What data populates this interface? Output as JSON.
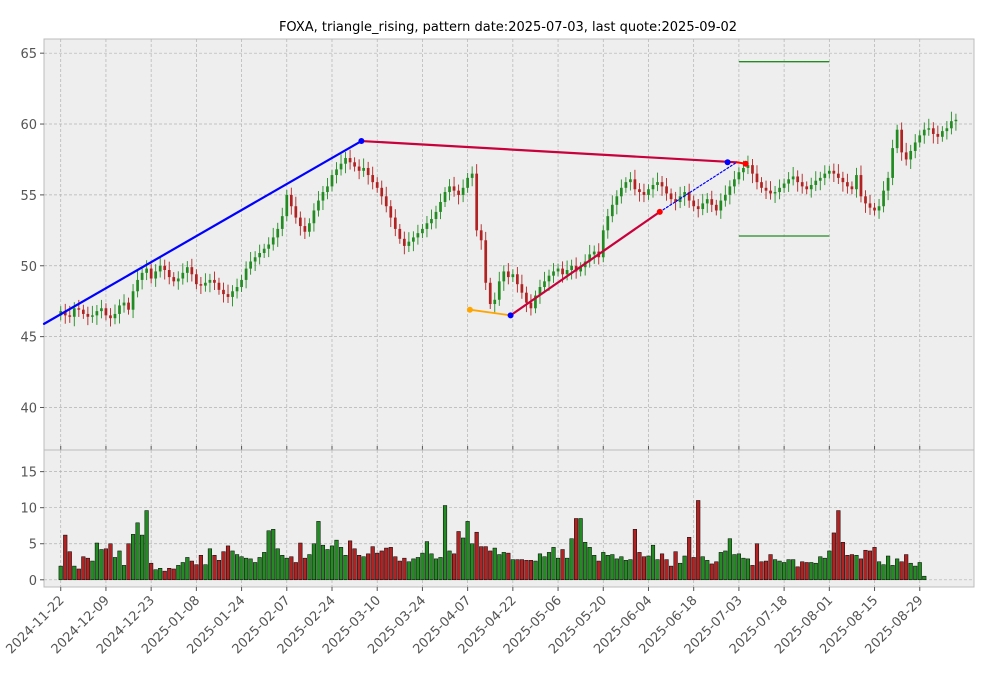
{
  "chart_data": {
    "type": "candlestick",
    "title": "FOXA, triangle_rising, pattern date:2025-07-03, last quote:2025-09-02",
    "price_panel": {
      "ylim": [
        37,
        66
      ],
      "yticks": [
        40,
        45,
        50,
        55,
        60,
        65
      ]
    },
    "volume_panel": {
      "ylim": [
        -1,
        18
      ],
      "yticks": [
        0,
        5,
        10,
        15
      ]
    },
    "xlim": [
      -3.7,
      202
    ],
    "x_tick_labels": [
      "2024-11-22",
      "2024-12-09",
      "2024-12-23",
      "2025-01-08",
      "2025-01-24",
      "2025-02-07",
      "2025-02-24",
      "2025-03-10",
      "2025-03-24",
      "2025-04-07",
      "2025-04-22",
      "2025-05-06",
      "2025-05-20",
      "2025-06-04",
      "2025-06-18",
      "2025-07-03",
      "2025-07-18",
      "2025-08-01",
      "2025-08-15",
      "2025-08-29"
    ],
    "x_tick_positions": [
      0,
      10,
      20,
      30,
      40,
      50,
      60,
      70,
      80,
      90,
      100,
      110,
      120,
      130,
      140,
      150,
      160,
      170,
      180,
      190
    ],
    "grid": true,
    "colors": {
      "up": "#228b22",
      "down": "#b22222",
      "upper_line_left": "#0000ff",
      "upper_line_right": "#c8003c",
      "marker_blue": "#0000ff",
      "marker_red": "#ff0000",
      "marker_orange": "#ffa500",
      "target": "#228b22",
      "dotted": "#0000ff"
    },
    "closes": [
      46.8,
      46.5,
      46.4,
      47.0,
      46.9,
      46.6,
      46.4,
      46.5,
      46.8,
      47.0,
      46.5,
      46.3,
      46.6,
      47.2,
      47.4,
      46.9,
      48.2,
      49.0,
      49.5,
      49.8,
      49.1,
      49.6,
      50.0,
      49.7,
      49.2,
      48.9,
      49.1,
      49.5,
      49.9,
      49.4,
      48.7,
      48.6,
      48.8,
      49.0,
      48.8,
      48.3,
      48.0,
      47.8,
      48.2,
      48.5,
      49.0,
      49.8,
      50.3,
      50.6,
      50.9,
      51.2,
      51.5,
      52.0,
      52.6,
      53.5,
      55.0,
      54.2,
      53.4,
      52.8,
      52.4,
      53.0,
      53.9,
      54.6,
      55.2,
      55.6,
      56.4,
      56.8,
      57.2,
      57.6,
      57.3,
      57.0,
      56.7,
      56.9,
      56.4,
      55.9,
      55.5,
      54.9,
      54.2,
      53.4,
      52.6,
      51.9,
      51.4,
      51.7,
      52.0,
      52.3,
      52.6,
      53.0,
      53.3,
      53.8,
      54.5,
      55.2,
      55.6,
      55.3,
      55.0,
      55.5,
      56.2,
      56.5,
      52.5,
      51.8,
      48.8,
      47.3,
      47.6,
      48.9,
      49.6,
      49.2,
      49.4,
      48.7,
      48.1,
      47.4,
      47.0,
      47.9,
      48.5,
      48.9,
      49.3,
      49.6,
      49.8,
      49.4,
      49.7,
      50.0,
      49.6,
      49.9,
      50.3,
      50.8,
      51.0,
      50.6,
      52.5,
      53.5,
      54.3,
      54.9,
      55.5,
      55.9,
      56.1,
      55.4,
      55.2,
      55.0,
      55.4,
      55.7,
      55.9,
      55.6,
      55.1,
      54.7,
      54.5,
      54.9,
      55.2,
      54.6,
      54.2,
      54.0,
      54.4,
      54.7,
      54.3,
      53.9,
      54.6,
      55.0,
      55.6,
      56.1,
      56.6,
      56.9,
      57.1,
      56.5,
      55.9,
      55.5,
      55.3,
      55.1,
      55.2,
      55.5,
      55.8,
      56.1,
      56.3,
      55.9,
      55.6,
      55.4,
      55.7,
      56.0,
      56.2,
      56.5,
      56.7,
      56.5,
      56.2,
      55.9,
      55.6,
      55.4,
      56.4,
      54.9,
      54.4,
      54.1,
      53.9,
      54.2,
      55.3,
      56.2,
      58.3,
      59.6,
      58.0,
      57.5,
      58.1,
      58.7,
      59.2,
      59.6,
      59.7,
      59.3,
      59.1,
      59.5,
      59.7,
      60.2,
      60.3
    ],
    "volumes": [
      1.9,
      6.2,
      3.9,
      1.9,
      1.5,
      3.2,
      3.0,
      2.6,
      5.1,
      4.2,
      4.3,
      5.0,
      3.1,
      4.0,
      2.0,
      5.0,
      6.3,
      7.9,
      6.2,
      9.6,
      2.3,
      1.4,
      1.6,
      1.2,
      1.6,
      1.5,
      2.0,
      2.4,
      3.1,
      2.6,
      2.1,
      3.4,
      2.1,
      4.3,
      3.4,
      2.7,
      3.9,
      4.7,
      4.0,
      3.5,
      3.2,
      3.0,
      2.9,
      2.4,
      3.1,
      3.8,
      6.8,
      7.0,
      4.3,
      3.4,
      3.0,
      3.2,
      2.4,
      5.1,
      3.0,
      3.5,
      5.0,
      8.1,
      4.8,
      4.2,
      4.7,
      5.5,
      4.5,
      3.4,
      5.4,
      4.3,
      3.4,
      3.2,
      3.6,
      4.6,
      3.7,
      4.0,
      4.4,
      4.5,
      3.2,
      2.6,
      3.0,
      2.5,
      2.9,
      3.1,
      3.7,
      5.3,
      3.6,
      2.9,
      3.1,
      10.3,
      4.0,
      3.6,
      6.7,
      5.8,
      8.1,
      5.0,
      6.6,
      4.6,
      4.6,
      4.0,
      4.4,
      3.5,
      3.8,
      3.7,
      2.8,
      2.8,
      2.8,
      2.7,
      2.7,
      2.6,
      3.6,
      3.2,
      3.8,
      4.5,
      3.0,
      4.2,
      3.0,
      5.7,
      8.5,
      8.5,
      5.2,
      4.5,
      3.4,
      2.6,
      3.8,
      3.4,
      3.5,
      2.9,
      3.2,
      2.7,
      2.8,
      7.0,
      3.8,
      3.2,
      3.3,
      4.8,
      2.8,
      3.6,
      2.8,
      1.9,
      3.9,
      2.3,
      3.3,
      5.9,
      3.1,
      11.0,
      3.2,
      2.7,
      2.2,
      2.5,
      3.8,
      4.0,
      5.7,
      3.5,
      3.6,
      3.0,
      2.9,
      2.0,
      5.0,
      2.5,
      2.6,
      3.5,
      2.8,
      2.6,
      2.4,
      2.8,
      2.8,
      1.8,
      2.5,
      2.4,
      2.4,
      2.3,
      3.2,
      3.0,
      4.0,
      6.5,
      9.6,
      5.2,
      3.4,
      3.5,
      3.4,
      2.9,
      4.1,
      4.0,
      4.5,
      2.5,
      2.1,
      3.3,
      2.0,
      2.9,
      2.5,
      3.5,
      2.3,
      1.9,
      2.4,
      0.5
    ],
    "patterns": {
      "upper_trendline": [
        {
          "x": 66.5,
          "y": 58.8
        },
        {
          "x": 149.5,
          "y": 57.3
        }
      ],
      "upper_extension_left": [
        {
          "x": -3.7,
          "y": 45.9
        },
        {
          "x": 66.5,
          "y": 58.8
        }
      ],
      "lower_trendline": [
        {
          "x": 99.5,
          "y": 46.5
        },
        {
          "x": 132.5,
          "y": 53.8
        }
      ],
      "orange_segment": [
        {
          "x": 90.5,
          "y": 46.9
        },
        {
          "x": 99.5,
          "y": 46.5
        }
      ],
      "dotted_projection": [
        {
          "x": 132.5,
          "y": 53.8
        },
        {
          "x": 149.5,
          "y": 57.3
        }
      ],
      "red_tail": [
        {
          "x": 149.5,
          "y": 57.3
        },
        {
          "x": 151.5,
          "y": 57.2
        }
      ],
      "blue_markers": [
        {
          "x": 66.5,
          "y": 58.8
        },
        {
          "x": 99.5,
          "y": 46.5
        },
        {
          "x": 147.5,
          "y": 57.3
        }
      ],
      "red_markers": [
        {
          "x": 132.5,
          "y": 53.8
        },
        {
          "x": 151.5,
          "y": 57.2
        }
      ],
      "orange_markers": [
        {
          "x": 90.5,
          "y": 46.9
        }
      ],
      "target_upper": {
        "x_start": 150,
        "x_end": 170,
        "y": 64.4
      },
      "target_lower": {
        "x_start": 150,
        "x_end": 170,
        "y": 52.1
      }
    }
  }
}
